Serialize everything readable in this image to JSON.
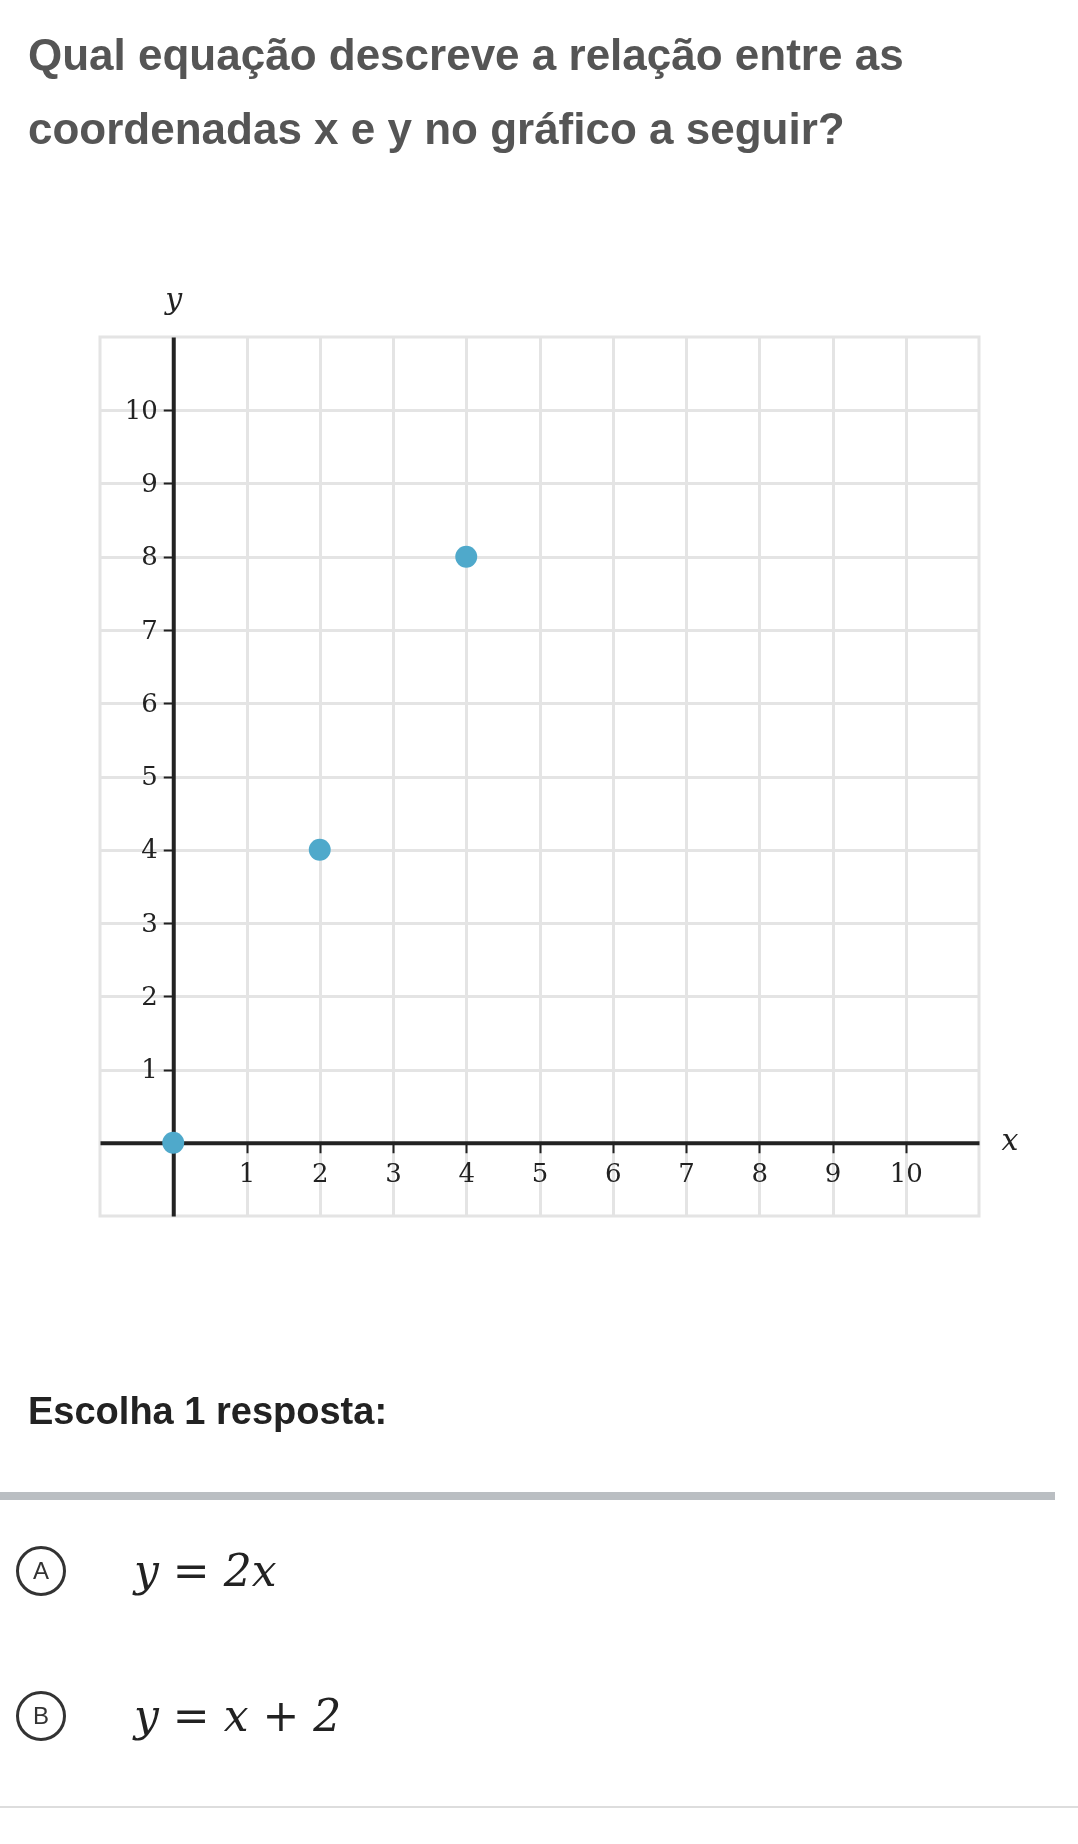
{
  "chart_data": {
    "type": "scatter",
    "title": "Qual equação descreve a relação entre as coordenadas x e y no gráfico a seguir?",
    "xlabel": "x",
    "ylabel": "y",
    "series": [
      {
        "color": "#4fa9cb",
        "x": [
          0,
          2,
          4
        ],
        "values": [
          0,
          4,
          8
        ]
      }
    ],
    "xlim": [
      -1,
      11
    ],
    "ylim": [
      -1,
      11
    ],
    "xticks": [
      1,
      2,
      3,
      4,
      5,
      6,
      7,
      8,
      9,
      10
    ],
    "yticks": [
      1,
      2,
      3,
      4,
      5,
      6,
      7,
      8,
      9,
      10
    ],
    "grid": true,
    "marker": "circle",
    "annotations": [
      "Escolha 1 resposta:",
      "A",
      "y = 2x",
      "B",
      "y = x + 2"
    ]
  }
}
